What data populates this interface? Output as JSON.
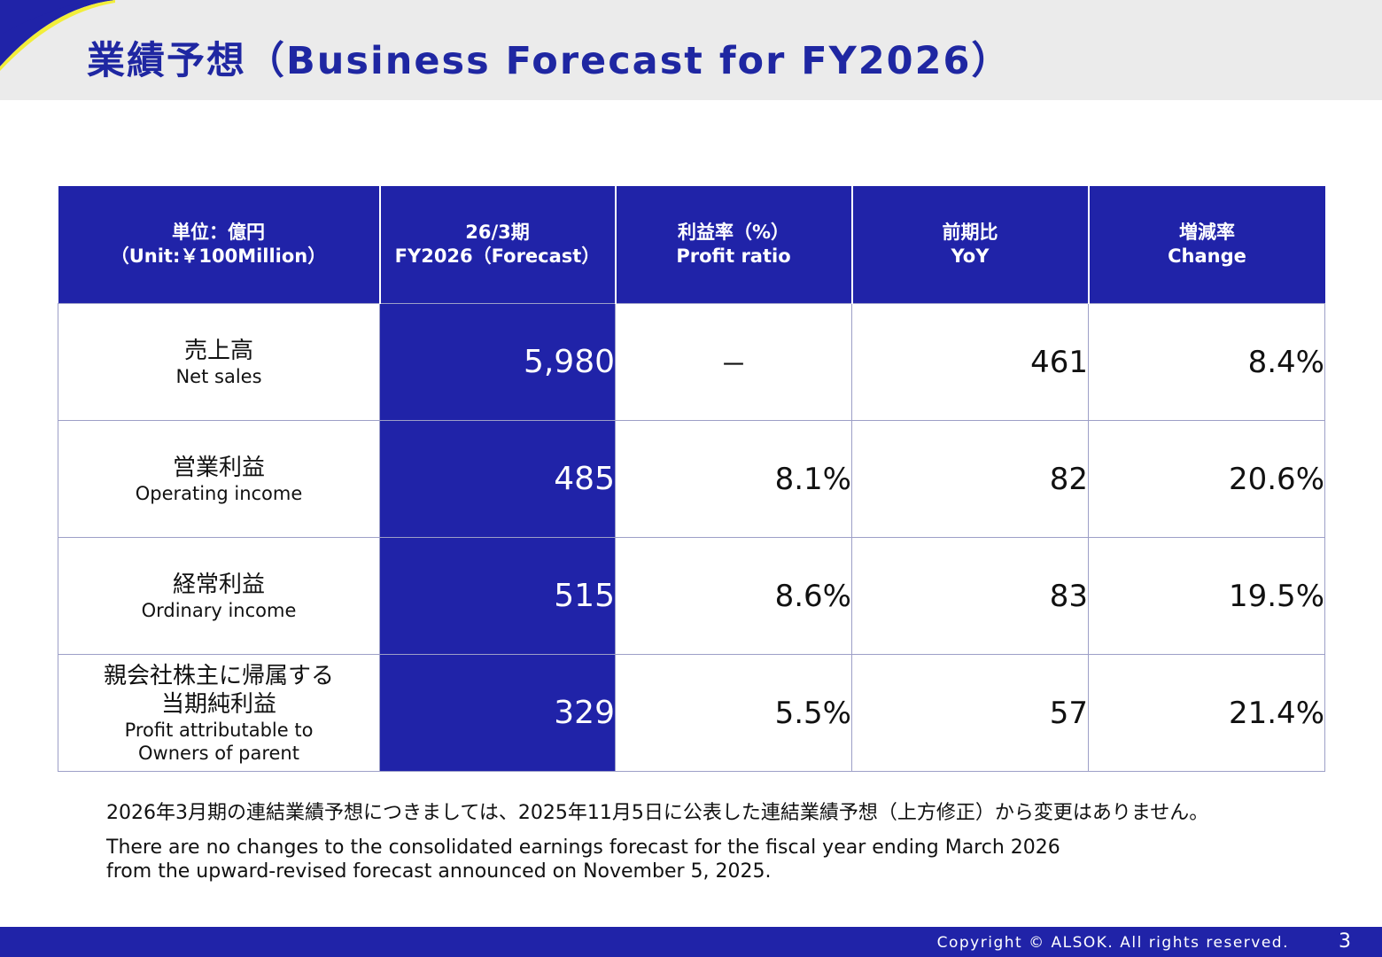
{
  "header": {
    "title": "業績予想（Business Forecast for FY2026）"
  },
  "table": {
    "columns": [
      {
        "jp": "単位：億円",
        "en": "（Unit:￥100Million）"
      },
      {
        "jp": "26/3期",
        "en": "FY2026（Forecast）"
      },
      {
        "jp": "利益率（%）",
        "en": "Profit ratio"
      },
      {
        "jp": "前期比",
        "en": "YoY"
      },
      {
        "jp": "増減率",
        "en": "Change"
      }
    ],
    "rows": [
      {
        "jp": "売上高",
        "en": "Net sales",
        "forecast": "5,980",
        "profit_ratio": "－",
        "yoy": "461",
        "change": "8.4%"
      },
      {
        "jp": "営業利益",
        "en": "Operating income",
        "forecast": "485",
        "profit_ratio": "8.1%",
        "yoy": "82",
        "change": "20.6%"
      },
      {
        "jp": "経常利益",
        "en": "Ordinary income",
        "forecast": "515",
        "profit_ratio": "8.6%",
        "yoy": "83",
        "change": "19.5%"
      },
      {
        "jp_line1": "親会社株主に帰属する",
        "jp_line2": "当期純利益",
        "en_line1": "Profit attributable to",
        "en_line2": "Owners of parent",
        "forecast": "329",
        "profit_ratio": "5.5%",
        "yoy": "57",
        "change": "21.4%"
      }
    ]
  },
  "notes": {
    "jp": "2026年3月期の連結業績予想につきましては、2025年11月5日に公表した連結業績予想（上方修正）から変更はありません。",
    "en_line1": "There are no changes to the consolidated earnings forecast for the fiscal year ending March 2026",
    "en_line2": "from the upward-revised forecast announced on November 5, 2025."
  },
  "footer": {
    "copyright": "Copyright © ALSOK. All rights reserved.",
    "page_number": "3"
  },
  "colors": {
    "brand_blue": "#2023a8",
    "title_blue": "#1f27a2",
    "accent_yellow": "#f2ee3a",
    "header_gray": "#ebebeb"
  }
}
